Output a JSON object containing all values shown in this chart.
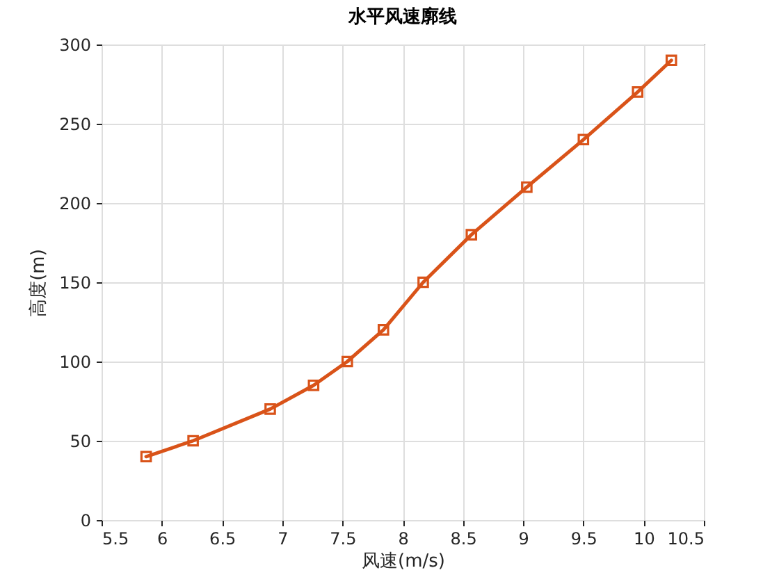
{
  "chart_data": {
    "type": "line",
    "title": "水平风速廓线",
    "xlabel": "风速(m/s)",
    "ylabel": "高度(m)",
    "x": [
      5.87,
      6.26,
      6.9,
      7.26,
      7.54,
      7.84,
      8.17,
      8.57,
      9.03,
      9.5,
      9.95,
      10.23
    ],
    "series": [
      {
        "color": "#d95319",
        "values": [
          40,
          50,
          70,
          85,
          100,
          120,
          150,
          180,
          210,
          240,
          270,
          290
        ]
      }
    ],
    "xlim": [
      5.5,
      10.5
    ],
    "xticks": [
      5.5,
      6,
      6.5,
      7,
      7.5,
      8,
      8.5,
      9,
      9.5,
      10,
      10.5
    ],
    "ylim": [
      0,
      300
    ],
    "yticks": [
      0,
      50,
      100,
      150,
      200,
      250,
      300
    ],
    "grid": true,
    "marker": "square",
    "line_style": "solid"
  }
}
